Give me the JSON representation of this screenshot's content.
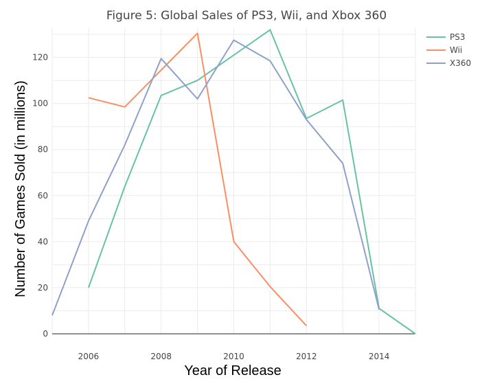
{
  "chart_data": {
    "type": "line",
    "title": "Figure 5: Global Sales of PS3, Wii, and Xbox 360",
    "xlabel": "Year of Release",
    "ylabel": "Number of Games Sold (in millions)",
    "xlim": [
      2005,
      2015
    ],
    "ylim": [
      0,
      133
    ],
    "x_ticks": [
      2006,
      2008,
      2010,
      2012,
      2014
    ],
    "y_ticks": [
      0,
      20,
      40,
      60,
      80,
      100,
      120
    ],
    "grid": true,
    "legend_position": "top-right",
    "series": [
      {
        "name": "PS3",
        "color": "#66c2a5",
        "x": [
          2006,
          2007,
          2008,
          2009,
          2010,
          2011,
          2012,
          2013,
          2014,
          2015
        ],
        "y": [
          20,
          64,
          103.5,
          110,
          121,
          132,
          93.5,
          101.5,
          11,
          0
        ]
      },
      {
        "name": "Wii",
        "color": "#fc8d62",
        "x": [
          2006,
          2007,
          2008,
          2009,
          2010,
          2011,
          2012
        ],
        "y": [
          102.5,
          98.5,
          114.5,
          130.5,
          40,
          20.5,
          3.5
        ]
      },
      {
        "name": "X360",
        "color": "#8da0cb",
        "x": [
          2005,
          2006,
          2007,
          2008,
          2009,
          2010,
          2011,
          2012,
          2013,
          2014
        ],
        "y": [
          8,
          49,
          82,
          119.5,
          102,
          127.5,
          118.5,
          93,
          74,
          10.5
        ]
      }
    ]
  }
}
